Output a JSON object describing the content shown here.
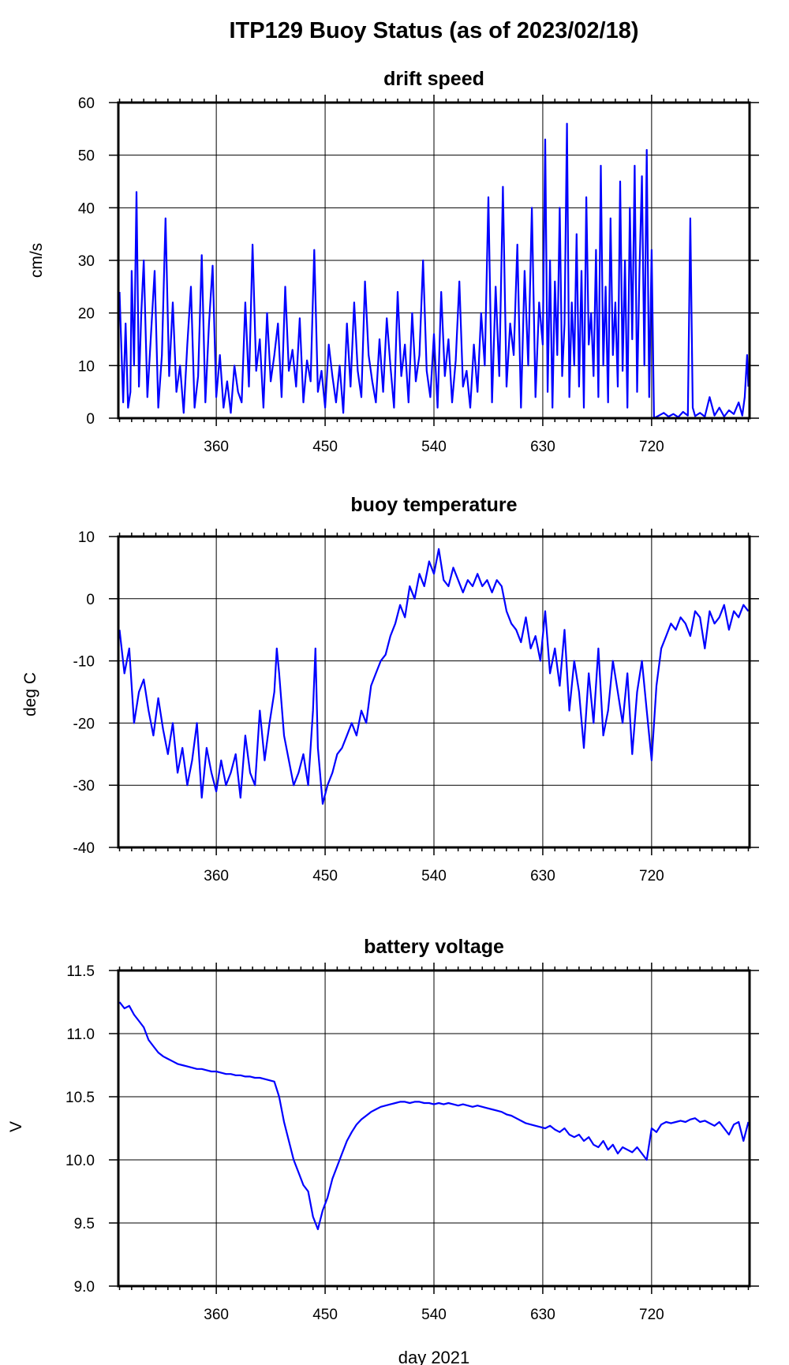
{
  "figure": {
    "title": "ITP129 Buoy Status (as of 2023/02/18)",
    "xlabel": "day 2021"
  },
  "colors": {
    "series": "#0000ff",
    "axis": "#000000",
    "grid": "#000000"
  },
  "chart_data": [
    {
      "type": "line",
      "title": "drift speed",
      "ylabel": "cm/s",
      "xlim": [
        279,
        801
      ],
      "ylim": [
        0,
        60
      ],
      "xticks": [
        360,
        450,
        540,
        630,
        720
      ],
      "yticks": [
        0,
        10,
        20,
        30,
        40,
        50,
        60
      ],
      "ytick_labels": [
        "0",
        "10",
        "20",
        "30",
        "40",
        "50",
        "60"
      ],
      "grid": true,
      "series": [
        {
          "x": [
            280,
            283,
            285,
            287,
            289,
            290,
            292,
            294,
            296,
            298,
            300,
            303,
            306,
            309,
            312,
            315,
            318,
            321,
            324,
            327,
            330,
            333,
            336,
            339,
            342,
            345,
            348,
            351,
            354,
            357,
            360,
            363,
            366,
            369,
            372,
            375,
            378,
            381,
            384,
            387,
            390,
            393,
            396,
            399,
            402,
            405,
            408,
            411,
            414,
            417,
            420,
            423,
            426,
            429,
            432,
            435,
            438,
            441,
            444,
            447,
            450,
            453,
            456,
            459,
            462,
            465,
            468,
            471,
            474,
            477,
            480,
            483,
            486,
            489,
            492,
            495,
            498,
            501,
            504,
            507,
            510,
            513,
            516,
            519,
            522,
            525,
            528,
            531,
            534,
            537,
            540,
            543,
            546,
            549,
            552,
            555,
            558,
            561,
            564,
            567,
            570,
            573,
            576,
            579,
            582,
            585,
            588,
            591,
            594,
            597,
            600,
            603,
            606,
            609,
            612,
            615,
            618,
            621,
            624,
            627,
            630,
            632,
            634,
            636,
            638,
            640,
            642,
            644,
            646,
            648,
            650,
            652,
            654,
            656,
            658,
            660,
            662,
            664,
            666,
            668,
            670,
            672,
            674,
            676,
            678,
            680,
            682,
            684,
            686,
            688,
            690,
            692,
            694,
            696,
            698,
            700,
            702,
            704,
            706,
            708,
            710,
            712,
            714,
            716,
            718,
            720,
            722,
            726,
            730,
            734,
            738,
            742,
            746,
            750,
            752,
            754,
            756,
            760,
            764,
            768,
            772,
            776,
            780,
            784,
            788,
            792,
            795,
            797,
            799,
            800
          ],
          "y": [
            24,
            3,
            18,
            2,
            5,
            28,
            10,
            43,
            6,
            20,
            30,
            4,
            16,
            28,
            2,
            12,
            38,
            8,
            22,
            5,
            10,
            1,
            14,
            25,
            2,
            8,
            31,
            3,
            18,
            29,
            4,
            12,
            2,
            7,
            1,
            10,
            5,
            3,
            22,
            6,
            33,
            9,
            15,
            2,
            20,
            7,
            12,
            18,
            4,
            25,
            9,
            13,
            6,
            19,
            3,
            11,
            7,
            32,
            5,
            9,
            2,
            14,
            8,
            3,
            10,
            1,
            18,
            6,
            22,
            9,
            4,
            26,
            12,
            7,
            3,
            15,
            5,
            19,
            10,
            2,
            24,
            8,
            14,
            3,
            20,
            7,
            12,
            30,
            9,
            4,
            16,
            2,
            24,
            8,
            15,
            3,
            11,
            26,
            6,
            9,
            2,
            14,
            5,
            20,
            10,
            42,
            3,
            25,
            8,
            44,
            6,
            18,
            12,
            33,
            2,
            28,
            10,
            40,
            4,
            22,
            14,
            53,
            5,
            30,
            2,
            26,
            12,
            40,
            8,
            18,
            56,
            4,
            22,
            10,
            35,
            6,
            28,
            2,
            42,
            14,
            20,
            8,
            32,
            4,
            48,
            10,
            25,
            3,
            38,
            12,
            22,
            6,
            45,
            9,
            30,
            2,
            40,
            15,
            48,
            5,
            28,
            46,
            10,
            51,
            4,
            32,
            0,
            0.5,
            1,
            0.3,
            0.8,
            0.2,
            1.2,
            0.5,
            38,
            2,
            0.4,
            1,
            0.3,
            4,
            0.5,
            2,
            0.3,
            1.5,
            0.8,
            3,
            0.5,
            4,
            12,
            6
          ]
        }
      ]
    },
    {
      "type": "line",
      "title": "buoy temperature",
      "ylabel": "deg C",
      "xlim": [
        279,
        801
      ],
      "ylim": [
        -40,
        10
      ],
      "xticks": [
        360,
        450,
        540,
        630,
        720
      ],
      "yticks": [
        -40,
        -30,
        -20,
        -10,
        0,
        10
      ],
      "ytick_labels": [
        "-40",
        "-30",
        "-20",
        "-10",
        "0",
        "10"
      ],
      "grid": true,
      "series": [
        {
          "x": [
            280,
            284,
            288,
            292,
            296,
            300,
            304,
            308,
            312,
            316,
            320,
            324,
            328,
            332,
            336,
            340,
            344,
            348,
            352,
            356,
            360,
            364,
            368,
            372,
            376,
            380,
            384,
            388,
            392,
            396,
            400,
            404,
            408,
            410,
            412,
            416,
            420,
            424,
            428,
            432,
            436,
            440,
            442,
            444,
            448,
            452,
            456,
            460,
            464,
            468,
            472,
            476,
            480,
            484,
            488,
            492,
            496,
            500,
            504,
            508,
            512,
            516,
            520,
            524,
            528,
            532,
            536,
            540,
            544,
            548,
            552,
            556,
            560,
            564,
            568,
            572,
            576,
            580,
            584,
            588,
            592,
            596,
            600,
            604,
            608,
            612,
            616,
            620,
            624,
            628,
            632,
            636,
            640,
            644,
            648,
            652,
            656,
            660,
            664,
            668,
            672,
            676,
            680,
            684,
            688,
            692,
            696,
            700,
            704,
            708,
            712,
            716,
            720,
            724,
            728,
            732,
            736,
            740,
            744,
            748,
            752,
            756,
            760,
            764,
            768,
            772,
            776,
            780,
            784,
            788,
            792,
            796,
            800
          ],
          "y": [
            -5,
            -12,
            -8,
            -20,
            -15,
            -13,
            -18,
            -22,
            -16,
            -21,
            -25,
            -20,
            -28,
            -24,
            -30,
            -26,
            -20,
            -32,
            -24,
            -28,
            -31,
            -26,
            -30,
            -28,
            -25,
            -32,
            -22,
            -28,
            -30,
            -18,
            -26,
            -20,
            -15,
            -8,
            -12,
            -22,
            -26,
            -30,
            -28,
            -25,
            -30,
            -18,
            -8,
            -24,
            -33,
            -30,
            -28,
            -25,
            -24,
            -22,
            -20,
            -22,
            -18,
            -20,
            -14,
            -12,
            -10,
            -9,
            -6,
            -4,
            -1,
            -3,
            2,
            0,
            4,
            2,
            6,
            4,
            8,
            3,
            2,
            5,
            3,
            1,
            3,
            2,
            4,
            2,
            3,
            1,
            3,
            2,
            -2,
            -4,
            -5,
            -7,
            -3,
            -8,
            -6,
            -10,
            -2,
            -12,
            -8,
            -14,
            -5,
            -18,
            -10,
            -15,
            -24,
            -12,
            -20,
            -8,
            -22,
            -18,
            -10,
            -15,
            -20,
            -12,
            -25,
            -15,
            -10,
            -18,
            -26,
            -14,
            -8,
            -6,
            -4,
            -5,
            -3,
            -4,
            -6,
            -2,
            -3,
            -8,
            -2,
            -4,
            -3,
            -1,
            -5,
            -2,
            -3,
            -1,
            -2
          ]
        }
      ]
    },
    {
      "type": "line",
      "title": "battery voltage",
      "ylabel": "V",
      "xlim": [
        279,
        801
      ],
      "ylim": [
        9.0,
        11.5
      ],
      "xticks": [
        360,
        450,
        540,
        630,
        720
      ],
      "yticks": [
        9.0,
        9.5,
        10.0,
        10.5,
        11.0,
        11.5
      ],
      "ytick_labels": [
        "9.0",
        "9.5",
        "10.0",
        "10.5",
        "11.0",
        "11.5"
      ],
      "grid": true,
      "series": [
        {
          "x": [
            280,
            284,
            288,
            292,
            296,
            300,
            304,
            308,
            312,
            316,
            320,
            324,
            328,
            332,
            336,
            340,
            344,
            348,
            352,
            356,
            360,
            364,
            368,
            372,
            376,
            380,
            384,
            388,
            392,
            396,
            400,
            404,
            408,
            412,
            416,
            420,
            424,
            428,
            432,
            436,
            440,
            444,
            448,
            452,
            456,
            460,
            464,
            468,
            472,
            476,
            480,
            484,
            488,
            492,
            496,
            500,
            504,
            508,
            512,
            516,
            520,
            524,
            528,
            532,
            536,
            540,
            544,
            548,
            552,
            556,
            560,
            564,
            568,
            572,
            576,
            580,
            584,
            588,
            592,
            596,
            600,
            604,
            608,
            612,
            616,
            620,
            624,
            628,
            632,
            636,
            640,
            644,
            648,
            652,
            656,
            660,
            664,
            668,
            672,
            676,
            680,
            684,
            688,
            692,
            696,
            700,
            704,
            708,
            712,
            716,
            720,
            724,
            728,
            732,
            736,
            740,
            744,
            748,
            752,
            756,
            760,
            764,
            768,
            772,
            776,
            780,
            784,
            788,
            792,
            796,
            800
          ],
          "y": [
            11.25,
            11.2,
            11.22,
            11.15,
            11.1,
            11.05,
            10.95,
            10.9,
            10.85,
            10.82,
            10.8,
            10.78,
            10.76,
            10.75,
            10.74,
            10.73,
            10.72,
            10.72,
            10.71,
            10.7,
            10.7,
            10.69,
            10.68,
            10.68,
            10.67,
            10.67,
            10.66,
            10.66,
            10.65,
            10.65,
            10.64,
            10.63,
            10.62,
            10.5,
            10.3,
            10.15,
            10.0,
            9.9,
            9.8,
            9.75,
            9.55,
            9.45,
            9.6,
            9.7,
            9.85,
            9.95,
            10.05,
            10.15,
            10.22,
            10.28,
            10.32,
            10.35,
            10.38,
            10.4,
            10.42,
            10.43,
            10.44,
            10.45,
            10.46,
            10.46,
            10.45,
            10.46,
            10.46,
            10.45,
            10.45,
            10.44,
            10.45,
            10.44,
            10.45,
            10.44,
            10.43,
            10.44,
            10.43,
            10.42,
            10.43,
            10.42,
            10.41,
            10.4,
            10.39,
            10.38,
            10.36,
            10.35,
            10.33,
            10.31,
            10.29,
            10.28,
            10.27,
            10.26,
            10.25,
            10.27,
            10.24,
            10.22,
            10.25,
            10.2,
            10.18,
            10.2,
            10.15,
            10.18,
            10.12,
            10.1,
            10.15,
            10.08,
            10.12,
            10.05,
            10.1,
            10.08,
            10.06,
            10.1,
            10.05,
            10.0,
            10.25,
            10.22,
            10.28,
            10.3,
            10.29,
            10.3,
            10.31,
            10.3,
            10.32,
            10.33,
            10.3,
            10.31,
            10.29,
            10.27,
            10.3,
            10.25,
            10.2,
            10.28,
            10.3,
            10.15,
            10.3
          ]
        }
      ]
    }
  ]
}
